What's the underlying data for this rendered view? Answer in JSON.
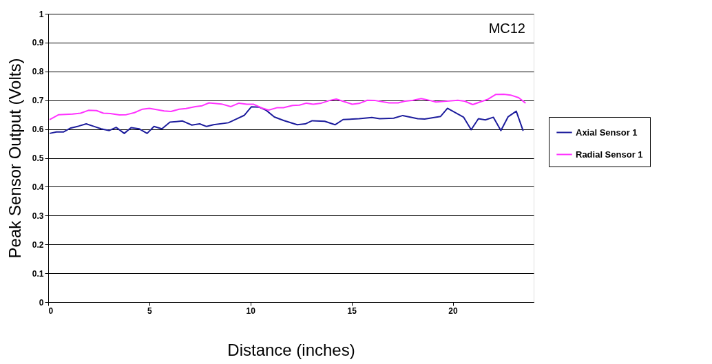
{
  "chart_data": {
    "type": "line",
    "xlabel": "Distance (inches)",
    "ylabel": "Peak Sensor Output (Volts)",
    "annotations": [
      "MC12"
    ],
    "xlim": [
      0,
      24
    ],
    "ylim": [
      0,
      1
    ],
    "xticks": [
      0,
      5,
      10,
      15,
      20
    ],
    "yticks": [
      0,
      0.1,
      0.2,
      0.3,
      0.4,
      0.5,
      0.6,
      0.7,
      0.8,
      0.9,
      1
    ],
    "grid": "y",
    "legend": "right",
    "marker": "none",
    "line_style": "solid",
    "series": [
      {
        "name": "Axial Sensor 1",
        "color": "#1c1c9c",
        "x": [
          0.07,
          0.41,
          0.75,
          1.09,
          1.49,
          1.88,
          2.28,
          2.62,
          3.02,
          3.36,
          3.76,
          4.1,
          4.49,
          4.89,
          5.23,
          5.62,
          6.02,
          6.64,
          7.1,
          7.49,
          7.83,
          8.17,
          8.91,
          9.31,
          9.7,
          10.04,
          10.44,
          10.78,
          11.18,
          11.63,
          12.31,
          12.71,
          13.05,
          13.67,
          14.18,
          14.58,
          15.37,
          16.0,
          16.39,
          17.08,
          17.53,
          18.27,
          18.61,
          19.4,
          19.74,
          20.54,
          20.91,
          21.27,
          21.61,
          22.01,
          22.38,
          22.74,
          23.14,
          23.48
        ],
        "values": [
          0.585,
          0.59,
          0.59,
          0.603,
          0.61,
          0.618,
          0.609,
          0.601,
          0.595,
          0.606,
          0.585,
          0.605,
          0.601,
          0.585,
          0.609,
          0.601,
          0.624,
          0.628,
          0.614,
          0.618,
          0.609,
          0.615,
          0.622,
          0.635,
          0.648,
          0.677,
          0.676,
          0.665,
          0.642,
          0.63,
          0.615,
          0.618,
          0.629,
          0.627,
          0.615,
          0.633,
          0.636,
          0.64,
          0.636,
          0.638,
          0.647,
          0.636,
          0.635,
          0.644,
          0.672,
          0.641,
          0.598,
          0.636,
          0.632,
          0.641,
          0.595,
          0.643,
          0.662,
          0.594
        ]
      },
      {
        "name": "Radial Sensor 1",
        "color": "#ff33ff",
        "x": [
          0.07,
          0.52,
          1.2,
          1.6,
          1.99,
          2.39,
          2.73,
          3.07,
          3.52,
          3.86,
          4.26,
          4.66,
          5.0,
          5.4,
          5.73,
          6.07,
          6.47,
          6.81,
          7.27,
          7.61,
          7.95,
          8.57,
          9.03,
          9.43,
          9.82,
          10.16,
          10.56,
          10.9,
          11.3,
          11.63,
          12.08,
          12.42,
          12.77,
          13.1,
          13.5,
          13.9,
          14.24,
          14.69,
          15.03,
          15.37,
          15.77,
          16.17,
          16.85,
          17.3,
          17.64,
          17.98,
          18.44,
          18.89,
          19.17,
          19.57,
          20.25,
          20.59,
          20.99,
          21.39,
          21.73,
          22.12,
          22.52,
          22.86,
          23.26,
          23.6
        ],
        "values": [
          0.633,
          0.65,
          0.652,
          0.655,
          0.665,
          0.664,
          0.655,
          0.654,
          0.649,
          0.65,
          0.657,
          0.669,
          0.672,
          0.667,
          0.663,
          0.661,
          0.669,
          0.671,
          0.678,
          0.681,
          0.691,
          0.687,
          0.678,
          0.69,
          0.686,
          0.686,
          0.673,
          0.666,
          0.674,
          0.674,
          0.682,
          0.683,
          0.69,
          0.686,
          0.69,
          0.699,
          0.704,
          0.694,
          0.686,
          0.689,
          0.7,
          0.699,
          0.691,
          0.691,
          0.697,
          0.699,
          0.706,
          0.699,
          0.694,
          0.696,
          0.7,
          0.697,
          0.685,
          0.695,
          0.703,
          0.72,
          0.721,
          0.718,
          0.709,
          0.69
        ]
      }
    ]
  }
}
